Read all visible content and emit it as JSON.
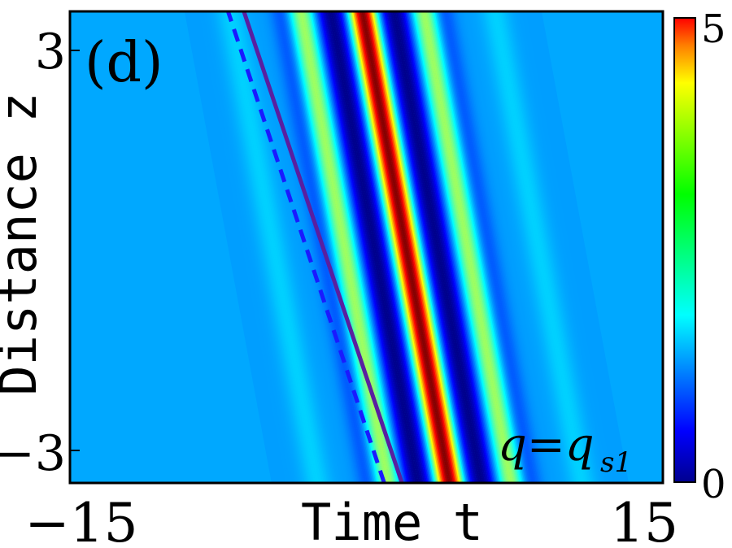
{
  "chart_data": {
    "type": "heatmap",
    "panel_label": "(d)",
    "annotation": "q=q_{s1}",
    "annotation_main": "q=q",
    "annotation_sub": "s1",
    "xlabel": "Time t",
    "ylabel": "Distance z",
    "x_ticks": [
      "−15",
      "15"
    ],
    "y_ticks": [
      "3",
      "−3"
    ],
    "xlim": [
      -15,
      15
    ],
    "ylim": [
      -3.3,
      3.3
    ],
    "colorbar": {
      "min": 0,
      "max": 5,
      "ticks": [
        "0",
        "5"
      ],
      "colormap": "jet"
    },
    "background_level": 1.4,
    "ridge": {
      "t_at_z_min": 4.2,
      "t_at_z_max": -0.2,
      "peak_value": 5.0
    },
    "overlay_lines": [
      {
        "style": "dashed",
        "color": "#1a1aff",
        "t_at_z_min": 0.9,
        "t_at_z_max": -7.0
      },
      {
        "style": "solid",
        "color": "#5a1fa0",
        "t_at_z_min": 1.8,
        "t_at_z_max": -6.2
      }
    ]
  }
}
